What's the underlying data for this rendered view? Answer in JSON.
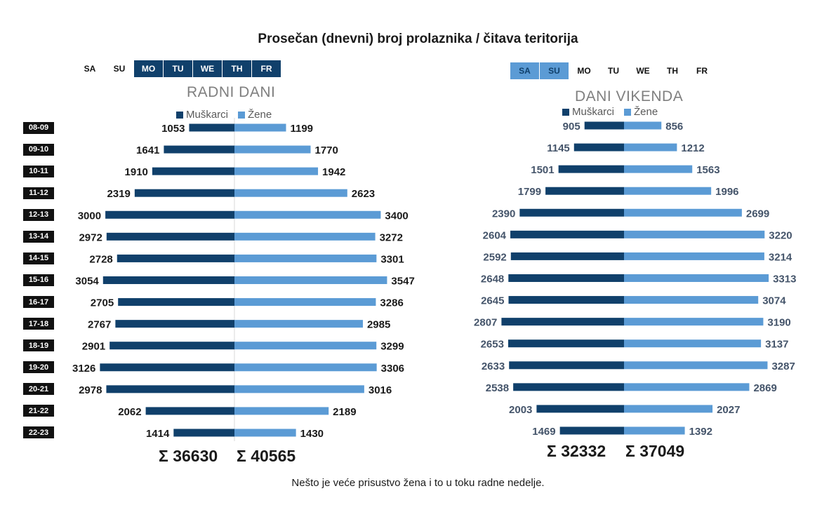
{
  "title": "Prosečan (dnevni) broj prolaznika / čitava teritorija",
  "footnote": "Nešto je veće prisustvo žena i to u toku radne nedelje.",
  "colors": {
    "men": "#10406b",
    "women": "#5b9bd5",
    "hour_bg": "#111111"
  },
  "days_left": [
    {
      "label": "SA",
      "active": false
    },
    {
      "label": "SU",
      "active": false
    },
    {
      "label": "MO",
      "active": true
    },
    {
      "label": "TU",
      "active": true
    },
    {
      "label": "WE",
      "active": true
    },
    {
      "label": "TH",
      "active": true
    },
    {
      "label": "FR",
      "active": true
    }
  ],
  "days_right": [
    {
      "label": "SA",
      "active": true
    },
    {
      "label": "SU",
      "active": true
    },
    {
      "label": "MO",
      "active": false
    },
    {
      "label": "TU",
      "active": false
    },
    {
      "label": "WE",
      "active": false
    },
    {
      "label": "TH",
      "active": false
    },
    {
      "label": "FR",
      "active": false
    }
  ],
  "hours": [
    "08-09",
    "09-10",
    "10-11",
    "11-12",
    "12-13",
    "13-14",
    "14-15",
    "15-16",
    "16-17",
    "17-18",
    "18-19",
    "19-20",
    "20-21",
    "21-22",
    "22-23"
  ],
  "chart_data": [
    {
      "type": "bar",
      "title": "RADNI DANI",
      "categories": [
        "08-09",
        "09-10",
        "10-11",
        "11-12",
        "12-13",
        "13-14",
        "14-15",
        "15-16",
        "16-17",
        "17-18",
        "18-19",
        "19-20",
        "20-21",
        "21-22",
        "22-23"
      ],
      "series": [
        {
          "name": "Muškarci",
          "values": [
            1053,
            1641,
            1910,
            2319,
            3000,
            2972,
            2728,
            3054,
            2705,
            2767,
            2901,
            3126,
            2978,
            2062,
            1414
          ]
        },
        {
          "name": "Žene",
          "values": [
            1199,
            1770,
            1942,
            2623,
            3400,
            3272,
            3301,
            3547,
            3286,
            2985,
            3299,
            3306,
            3016,
            2189,
            1430
          ]
        }
      ],
      "sum_men": "Σ  36630",
      "sum_women": "Σ  40565",
      "legend": "top"
    },
    {
      "type": "bar",
      "title": "DANI VIKENDA",
      "categories": [
        "08-09",
        "09-10",
        "10-11",
        "11-12",
        "12-13",
        "13-14",
        "14-15",
        "15-16",
        "16-17",
        "17-18",
        "18-19",
        "19-20",
        "20-21",
        "21-22",
        "22-23"
      ],
      "series": [
        {
          "name": "Muškarci",
          "values": [
            905,
            1145,
            1501,
            1799,
            2390,
            2604,
            2592,
            2648,
            2645,
            2807,
            2653,
            2633,
            2538,
            2003,
            1469
          ]
        },
        {
          "name": "Žene",
          "values": [
            856,
            1212,
            1563,
            1996,
            2699,
            3220,
            3214,
            3313,
            3074,
            3190,
            3137,
            3287,
            2869,
            2027,
            1392
          ]
        }
      ],
      "sum_men": "Σ  32332",
      "sum_women": "Σ  37049",
      "legend": "top"
    }
  ]
}
